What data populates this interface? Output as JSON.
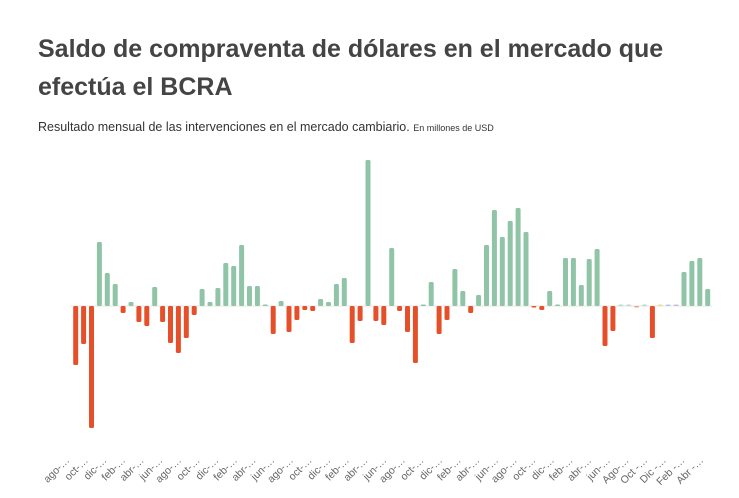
{
  "chart_data": {
    "type": "bar",
    "title": "Saldo de compraventa de dólares en el mercado que efectúa el BCRA",
    "subtitle": "Resultado  mensual de las intervenciones en el mercado cambiario.",
    "unit_note": "En millones de USD",
    "grid": false,
    "legend": "none",
    "colors": {
      "positive": "#8fc4a7",
      "negative": "#e5502a"
    },
    "tick_labels": [
      "ago-…",
      "oct-…",
      "dic-…",
      "feb-…",
      "abr-…",
      "jun-…",
      "ago-…",
      "oct-…",
      "dic-…",
      "feb-…",
      "abr-…",
      "jun-…",
      "ago-…",
      "oct-…",
      "dic-…",
      "feb-…",
      "abr-…",
      "jun-…",
      "ago-…",
      "oct-…",
      "dic-…",
      "feb-…",
      "abr-…",
      "jun-…",
      "ago-…",
      "oct-…",
      "dic-…",
      "feb-…",
      "abr-…",
      "jun-…",
      "Ago-…",
      "Oct -…",
      "Dic -…",
      "Feb -…",
      "Abr -…"
    ],
    "values": [
      -1475,
      -950,
      -3050,
      1600,
      825,
      550,
      -175,
      100,
      -400,
      -500,
      475,
      -400,
      -925,
      -1175,
      -800,
      -225,
      425,
      100,
      450,
      1075,
      1000,
      1525,
      500,
      500,
      10,
      -700,
      125,
      -650,
      -350,
      -100,
      -125,
      175,
      100,
      550,
      700,
      -925,
      -375,
      3650,
      -375,
      -475,
      1450,
      -125,
      -650,
      -1425,
      10,
      600,
      -700,
      -350,
      925,
      375,
      -175,
      275,
      1525,
      2400,
      1725,
      2125,
      2450,
      1850,
      -25,
      -100,
      375,
      10,
      1200,
      1200,
      525,
      1175,
      1425,
      -1000,
      -625,
      10,
      10,
      -10,
      10,
      -800,
      10,
      10,
      10,
      850,
      1125,
      1200,
      425
    ],
    "bar_color_overrides": {
      "69": "#b9dcc8",
      "70": "#b9dcc8",
      "71": "#f0a08a",
      "72": "#b9dcc8",
      "74": "#f5d88f",
      "75": "#a3cde9",
      "76": "#cdb9e2"
    }
  }
}
